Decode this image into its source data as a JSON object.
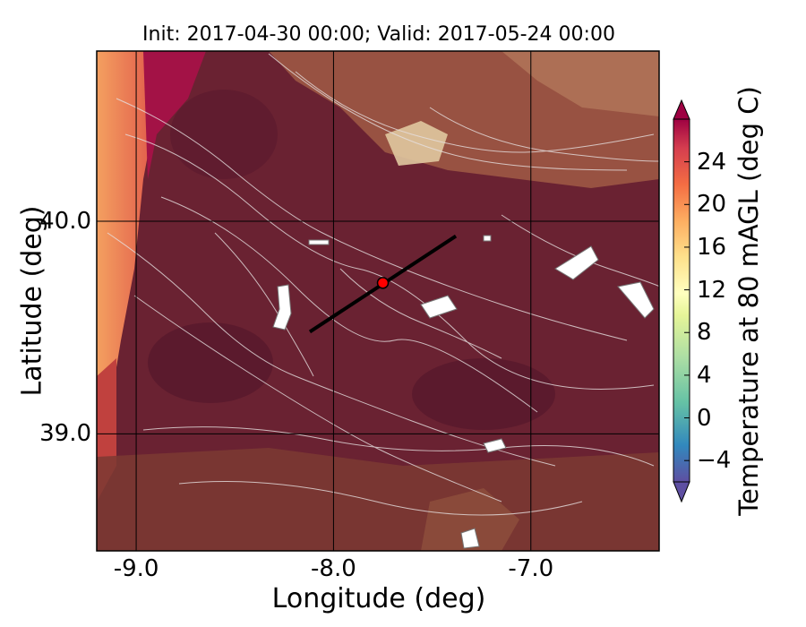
{
  "title": "Init: 2017-04-30 00:00; Valid: 2017-05-24 00:00",
  "chart_data": {
    "type": "heatmap",
    "xlabel": "Longitude (deg)",
    "ylabel": "Latitude (deg)",
    "xlim": [
      -9.2,
      -6.35
    ],
    "ylim": [
      38.45,
      40.8
    ],
    "x_ticks": [
      "-9.0",
      "-8.0",
      "-7.0"
    ],
    "x_tick_values": [
      -9.0,
      -8.0,
      -7.0
    ],
    "y_ticks": [
      "39.0",
      "40.0"
    ],
    "y_tick_values": [
      39.0,
      40.0
    ],
    "grid": true,
    "colorbar": {
      "label": "Temperature at 80 mAGL (deg C)",
      "range": [
        -6,
        28
      ],
      "ticks": [
        "−4",
        "0",
        "4",
        "8",
        "12",
        "16",
        "20",
        "24"
      ],
      "tick_values": [
        -4,
        0,
        4,
        8,
        12,
        16,
        20,
        24
      ],
      "colormap": "Spectral_r",
      "extend": "both"
    },
    "cross_section_line": {
      "lon": [
        -8.12,
        -7.38
      ],
      "lat": [
        39.48,
        39.93
      ],
      "color": "#000000"
    },
    "marker": {
      "lon": [
        -7.75
      ],
      "lat": [
        39.71
      ],
      "color": "#ff0000"
    }
  }
}
